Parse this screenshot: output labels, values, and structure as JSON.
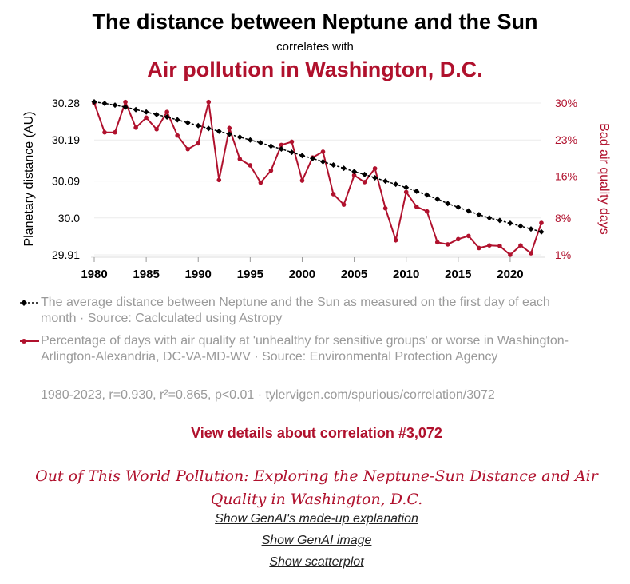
{
  "header": {
    "title": "The distance between Neptune and the Sun",
    "subtitle": "correlates with",
    "title2": "Air pollution in Washington, D.C."
  },
  "chart_data": {
    "type": "line",
    "x": [
      1980,
      1981,
      1982,
      1983,
      1984,
      1985,
      1986,
      1987,
      1988,
      1989,
      1990,
      1991,
      1992,
      1993,
      1994,
      1995,
      1996,
      1997,
      1998,
      1999,
      2000,
      2001,
      2002,
      2003,
      2004,
      2005,
      2006,
      2007,
      2008,
      2009,
      2010,
      2011,
      2012,
      2013,
      2014,
      2015,
      2016,
      2017,
      2018,
      2019,
      2020,
      2021,
      2022,
      2023
    ],
    "x_ticks": [
      1980,
      1985,
      1990,
      1995,
      2000,
      2005,
      2010,
      2015,
      2020
    ],
    "x_tick_labels": [
      "1980",
      "1985",
      "1990",
      "1995",
      "2000",
      "2005",
      "2010",
      "2015",
      "2020"
    ],
    "series": [
      {
        "name": "The average distance between Neptune and the Sun as measured on the first day of each month · Source: Caclculated using Astropy",
        "axis": "left",
        "color": "#000000",
        "values": [
          30.283,
          30.279,
          30.275,
          30.27,
          30.264,
          30.258,
          30.252,
          30.246,
          30.239,
          30.232,
          30.225,
          30.218,
          30.211,
          30.204,
          30.197,
          30.19,
          30.183,
          30.175,
          30.168,
          30.16,
          30.152,
          30.145,
          30.137,
          30.129,
          30.121,
          30.113,
          30.106,
          30.098,
          30.09,
          30.082,
          30.074,
          30.065,
          30.056,
          30.046,
          30.035,
          30.026,
          30.017,
          30.008,
          30.0,
          29.994,
          29.987,
          29.98,
          29.973,
          29.966
        ]
      },
      {
        "name": "Percentage of days with air quality at 'unhealthy for sensitive groups' or worse in Washington-Arlington-Alexandria, DC-VA-MD-WV · Source: Environmental Protection Agency",
        "axis": "right",
        "color": "#b0112d",
        "values": [
          30,
          24.4,
          24.4,
          30.2,
          25.3,
          27.2,
          25.0,
          28.3,
          23.8,
          21.2,
          22.3,
          30.2,
          15.3,
          25.2,
          19.3,
          18.1,
          14.8,
          17.1,
          22.0,
          22.6,
          15.2,
          19.6,
          20.7,
          12.6,
          10.6,
          16.2,
          14.9,
          17.5,
          9.9,
          3.8,
          13.0,
          10.2,
          9.3,
          3.4,
          3.0,
          4.0,
          4.6,
          2.3,
          2.8,
          2.7,
          1.0,
          2.8,
          1.3,
          7.1
        ]
      }
    ],
    "left_axis": {
      "label": "Planetary distance (AU)",
      "ticks": [
        29.91,
        30.0,
        30.09,
        30.19,
        30.28
      ],
      "tick_labels": [
        "29.91",
        "30.0",
        "30.09",
        "30.19",
        "30.28"
      ],
      "range": [
        29.91,
        30.28
      ]
    },
    "right_axis": {
      "label": "Bad air quality days",
      "ticks": [
        1,
        8,
        16,
        23,
        30
      ],
      "tick_labels": [
        "1%",
        "8%",
        "16%",
        "23%",
        "30%"
      ],
      "range": [
        1,
        30
      ]
    }
  },
  "legend": {
    "items": [
      {
        "text": "The average distance between Neptune and the Sun as measured on the first day of each month · Source: Caclculated using Astropy",
        "color": "#000000",
        "marker": "diamond"
      },
      {
        "text": "Percentage of days with air quality at 'unhealthy for sensitive groups' or worse in Washington-Arlington-Alexandria, DC-VA-MD-WV · Source: Environmental Protection Agency",
        "color": "#b0112d",
        "marker": "circle"
      }
    ],
    "stats": "1980-2023, r=0.930, r²=0.865, p<0.01 · tylervigen.com/spurious/correlation/3072"
  },
  "links": {
    "details": "View details about correlation #3,072",
    "paper_title": "Out of This World Pollution: Exploring the Neptune-Sun Distance and Air Quality in Washington, D.C.",
    "explanation": "Show GenAI's made-up explanation",
    "image": "Show GenAI image",
    "scatterplot": "Show scatterplot"
  },
  "colors": {
    "accent": "#b0112d",
    "series1": "#000000",
    "muted": "#9a9a9a"
  }
}
